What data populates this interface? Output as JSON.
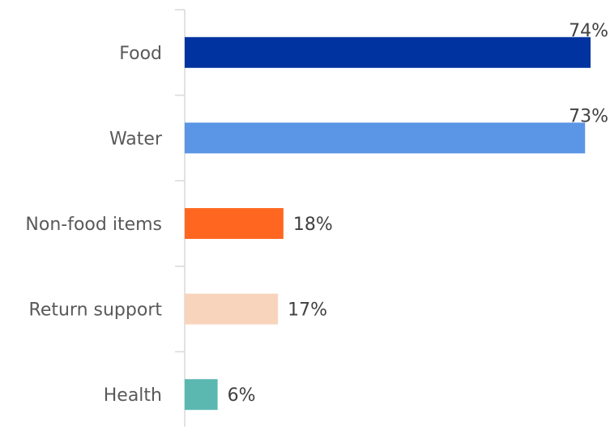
{
  "chart_data": {
    "type": "bar",
    "orientation": "horizontal",
    "categories": [
      "Food",
      "Water",
      "Non-food items",
      "Return support",
      "Health"
    ],
    "values": [
      74,
      73,
      18,
      17,
      6
    ],
    "value_labels": [
      "74%",
      "73%",
      "18%",
      "17%",
      "6%"
    ],
    "colors": [
      "#0033A0",
      "#5B95E5",
      "#FF6720",
      "#F8D4BC",
      "#5BB8B0"
    ],
    "xlim": [
      0,
      74
    ],
    "grid": false,
    "legend": "none"
  }
}
